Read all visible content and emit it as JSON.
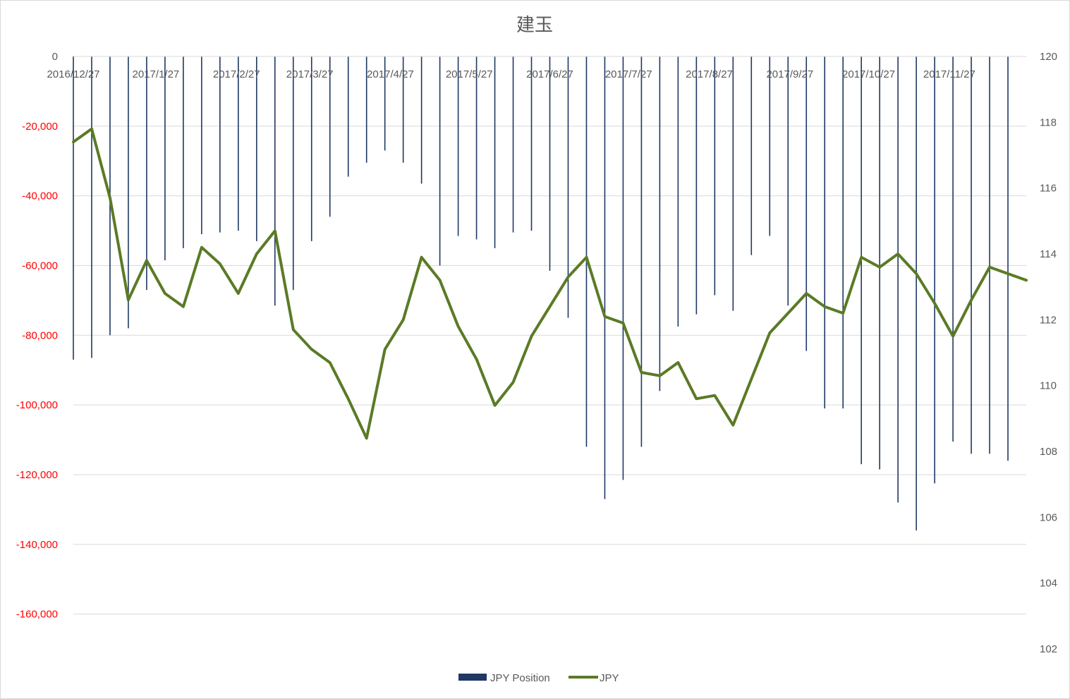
{
  "chart_data": {
    "type": "bar+line",
    "title": "建玉",
    "colors": {
      "bar": "#1f3864",
      "line": "#5b7a26",
      "grid": "#d9d9d9",
      "left_tick_zero": "#595959",
      "left_tick_negative": "#ff0000"
    },
    "left_axis": {
      "ylim": [
        -170000,
        0
      ],
      "ticks": [
        0,
        -20000,
        -40000,
        -60000,
        -80000,
        -100000,
        -120000,
        -140000,
        -160000
      ],
      "tick_labels": [
        "0",
        "-20,000",
        "-40,000",
        "-60,000",
        "-80,000",
        "-100,000",
        "-120,000",
        "-140,000",
        "-160,000"
      ]
    },
    "right_axis": {
      "ylim": [
        102,
        120
      ],
      "ticks": [
        102,
        104,
        106,
        108,
        110,
        112,
        114,
        116,
        118,
        120
      ],
      "tick_labels": [
        "102",
        "104",
        "106",
        "108",
        "110",
        "112",
        "114",
        "116",
        "118",
        "120"
      ]
    },
    "x_tick_labels": [
      {
        "index": 0,
        "label": "2016/12/27"
      },
      {
        "index": 4.5,
        "label": "2017/1/27"
      },
      {
        "index": 8.9,
        "label": "2017/2/27"
      },
      {
        "index": 12.9,
        "label": "2017/3/27"
      },
      {
        "index": 17.3,
        "label": "2017/4/27"
      },
      {
        "index": 21.6,
        "label": "2017/5/27"
      },
      {
        "index": 26,
        "label": "2017/6/27"
      },
      {
        "index": 30.3,
        "label": "2017/7/27"
      },
      {
        "index": 34.7,
        "label": "2017/8/27"
      },
      {
        "index": 39.1,
        "label": "2017/9/27"
      },
      {
        "index": 43.4,
        "label": "2017/10/27"
      },
      {
        "index": 47.8,
        "label": "2017/11/27"
      }
    ],
    "series": [
      {
        "name": "JPY Position",
        "type": "bar",
        "axis": "left",
        "values": [
          -87000,
          -86500,
          -80000,
          -78000,
          -67000,
          -58500,
          -55000,
          -51000,
          -50500,
          -50000,
          -53000,
          -71500,
          -67000,
          -53000,
          -46000,
          -34500,
          -30500,
          -27000,
          -30500,
          -36500,
          -60000,
          -51500,
          -52500,
          -55000,
          -50500,
          -50000,
          -61500,
          -75000,
          -112000,
          -127000,
          -121500,
          -112000,
          -96000,
          -77500,
          -74000,
          -68500,
          -73000,
          -57000,
          -51500,
          -71500,
          -84500,
          -101000,
          -101000,
          -117000,
          -118500,
          -128000,
          -136000,
          -122500,
          -110500,
          -114000,
          -114000,
          -116000
        ]
      },
      {
        "name": "JPY",
        "type": "line",
        "axis": "right",
        "values": [
          117.4,
          117.8,
          115.7,
          112.6,
          113.8,
          112.8,
          112.4,
          114.2,
          113.7,
          112.8,
          114.0,
          114.7,
          111.7,
          111.1,
          110.7,
          109.6,
          108.4,
          111.1,
          112.0,
          113.9,
          113.2,
          111.8,
          110.8,
          109.4,
          110.1,
          111.5,
          112.4,
          113.3,
          113.9,
          112.1,
          111.9,
          110.4,
          110.3,
          110.7,
          109.6,
          109.7,
          108.8,
          110.2,
          111.6,
          112.2,
          112.8,
          112.4,
          112.2,
          113.9,
          113.6,
          114.0,
          113.4,
          112.5,
          111.5,
          112.6,
          113.6,
          113.4,
          113.2
        ]
      }
    ],
    "legend": {
      "position": "bottom-center",
      "entries": [
        "JPY Position",
        "JPY"
      ]
    },
    "grid": true
  }
}
